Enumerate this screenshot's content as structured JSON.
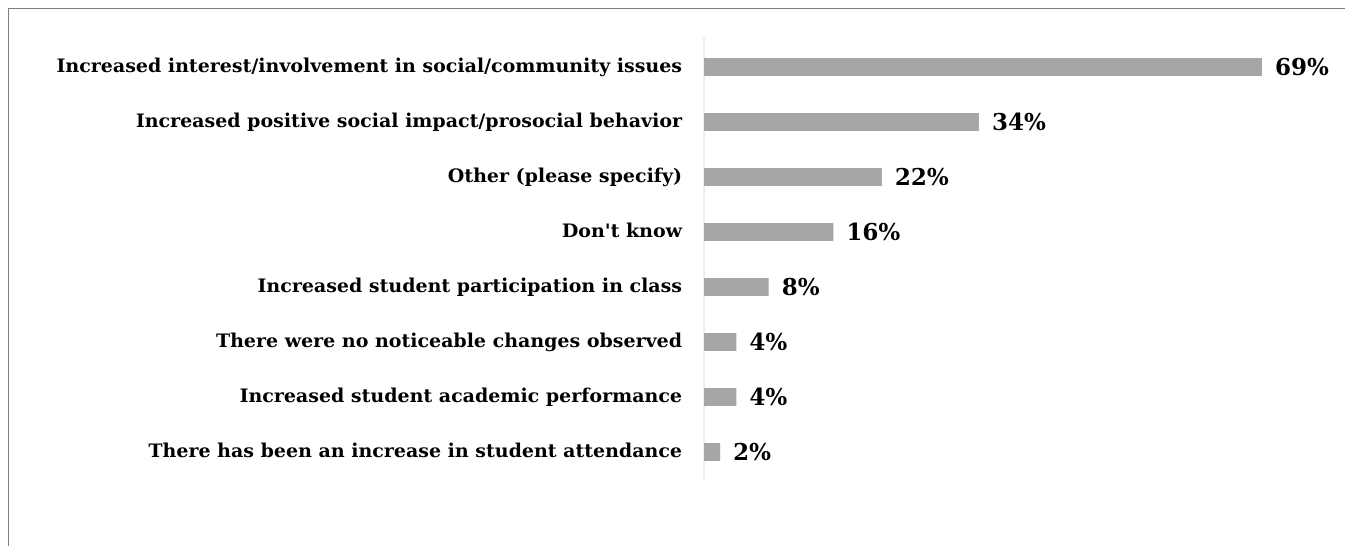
{
  "chart_data": {
    "type": "barh",
    "categories": [
      "Increased interest/involvement in social/community issues",
      "Increased positive social impact/prosocial behavior",
      "Other (please specify)",
      "Don't know",
      "Increased student participation in class",
      "There were no noticeable changes observed",
      "Increased student academic performance",
      "There has been an increase in student attendance"
    ],
    "values": [
      69,
      34,
      22,
      16,
      8,
      4,
      4,
      2
    ],
    "value_labels": [
      "69%",
      "34%",
      "22%",
      "16%",
      "8%",
      "4%",
      "4%",
      "2%"
    ],
    "color": "#a6a6a6"
  }
}
